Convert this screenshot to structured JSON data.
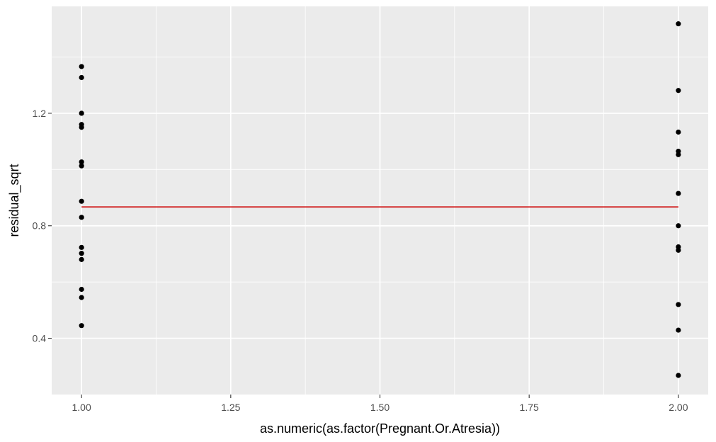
{
  "chart_data": {
    "type": "scatter",
    "title": "",
    "xlabel": "as.numeric(as.factor(Pregnant.Or.Atresia))",
    "ylabel": "residual_sqrt",
    "xlim": [
      0.95,
      2.05
    ],
    "ylim": [
      0.2,
      1.58
    ],
    "x_ticks": [
      1.0,
      1.25,
      1.5,
      1.75,
      2.0
    ],
    "x_tick_labels": [
      "1.00",
      "1.25",
      "1.50",
      "1.75",
      "2.00"
    ],
    "y_ticks": [
      0.4,
      0.8,
      1.2
    ],
    "y_tick_labels": [
      "0.4",
      "0.8",
      "1.2"
    ],
    "grid": true,
    "series": [
      {
        "type": "scatter",
        "points": [
          [
            1,
            1.366
          ],
          [
            1,
            1.327
          ],
          [
            1,
            1.2
          ],
          [
            1,
            1.16
          ],
          [
            1,
            1.15
          ],
          [
            1,
            1.027
          ],
          [
            1,
            1.013
          ],
          [
            1,
            0.887
          ],
          [
            1,
            0.83
          ],
          [
            1,
            0.723
          ],
          [
            1,
            0.702
          ],
          [
            1,
            0.68
          ],
          [
            1,
            0.574
          ],
          [
            1,
            0.545
          ],
          [
            1,
            0.445
          ],
          [
            2,
            1.518
          ],
          [
            2,
            1.281
          ],
          [
            2,
            1.133
          ],
          [
            2,
            1.065
          ],
          [
            2,
            1.053
          ],
          [
            2,
            0.915
          ],
          [
            2,
            0.8
          ],
          [
            2,
            0.725
          ],
          [
            2,
            0.713
          ],
          [
            2,
            0.52
          ],
          [
            2,
            0.429
          ],
          [
            2,
            0.268
          ]
        ]
      },
      {
        "type": "line",
        "points": [
          [
            1,
            0.867
          ],
          [
            2,
            0.867
          ]
        ]
      }
    ],
    "colors": {
      "panel_background": "#ebebeb",
      "grid_major": "#ffffff",
      "point": "#000000",
      "line": "#cc0000",
      "tick_label": "#4d4d4d",
      "tick": "#333333"
    }
  }
}
